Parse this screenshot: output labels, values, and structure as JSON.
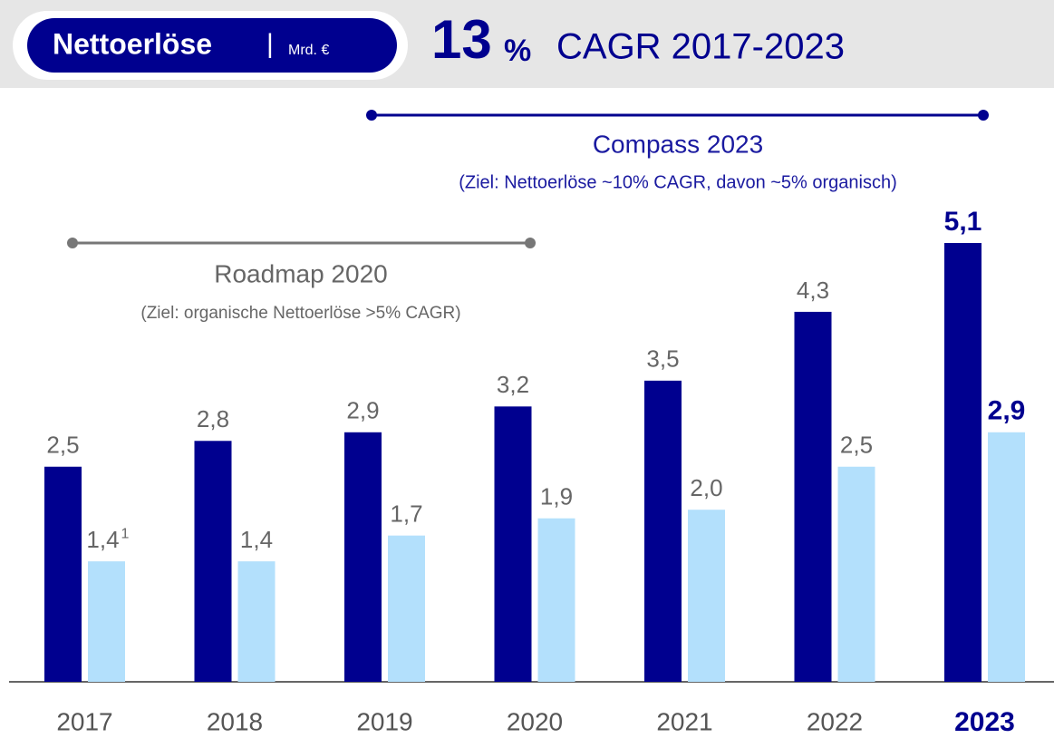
{
  "header": {
    "pill_title": "Nettoerlöse",
    "separator": "|",
    "unit": "Mrd. €",
    "cagr_number": "13",
    "cagr_percent": "%",
    "cagr_text": "CAGR 2017-2023"
  },
  "chart_data": {
    "type": "bar",
    "categories": [
      "2017",
      "2018",
      "2019",
      "2020",
      "2021",
      "2022",
      "2023"
    ],
    "series": [
      {
        "color": "#00008f",
        "values": [
          2.5,
          2.8,
          2.9,
          3.2,
          3.5,
          4.3,
          5.1
        ],
        "value_labels": [
          "2,5",
          "2,8",
          "2,9",
          "3,2",
          "3,5",
          "4,3",
          "5,1"
        ]
      },
      {
        "color": "#b3e0fc",
        "values": [
          1.4,
          1.4,
          1.7,
          1.9,
          2.0,
          2.5,
          2.9
        ],
        "value_labels": [
          "1,4",
          "1,4",
          "1,7",
          "1,9",
          "2,0",
          "2,5",
          "2,9"
        ]
      }
    ],
    "footnote_marker": "1",
    "annotations": {
      "compass_title": "Compass 2023",
      "compass_note": "(Ziel: Nettoerlöse ~10% CAGR, davon ~5% organisch)",
      "roadmap_title": "Roadmap 2020",
      "roadmap_note": "(Ziel: organische Nettoerlöse >5% CAGR)"
    }
  }
}
